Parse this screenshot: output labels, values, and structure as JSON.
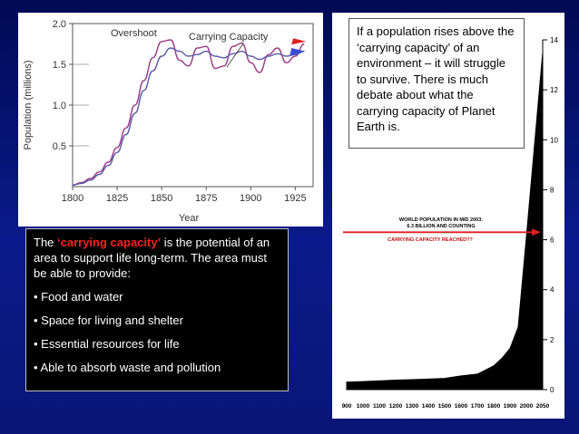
{
  "chart_data": [
    {
      "type": "line",
      "xlabel": "Year",
      "ylabel": "Population (millions)",
      "xlim": [
        1800,
        1935
      ],
      "ylim": [
        0,
        2.0
      ],
      "x_ticks": [
        1800,
        1825,
        1850,
        1875,
        1900,
        1925
      ],
      "y_ticks": [
        0.5,
        1.0,
        1.5,
        2.0
      ],
      "x_tick_labels": [
        "1800",
        "1825",
        "1850",
        "1875",
        "1900",
        "1925"
      ],
      "y_tick_labels": [
        "0.5",
        "1.0",
        "1.5",
        "2.0"
      ],
      "annotations": [
        "Overshoot",
        "Carrying Capacity"
      ],
      "series": [
        {
          "color": "#9b3a86",
          "x": [
            1800,
            1805,
            1810,
            1815,
            1820,
            1825,
            1830,
            1835,
            1840,
            1845,
            1850,
            1855,
            1860,
            1865,
            1870,
            1875,
            1880,
            1885,
            1890,
            1895,
            1900,
            1905,
            1910,
            1915,
            1920,
            1925,
            1930
          ],
          "values": [
            0.02,
            0.05,
            0.1,
            0.18,
            0.3,
            0.48,
            0.72,
            1.0,
            1.3,
            1.58,
            1.78,
            1.8,
            1.55,
            1.48,
            1.7,
            1.72,
            1.45,
            1.48,
            1.72,
            1.76,
            1.52,
            1.4,
            1.62,
            1.7,
            1.52,
            1.6,
            1.75
          ]
        },
        {
          "color": "#5a5aa8",
          "x": [
            1800,
            1805,
            1810,
            1815,
            1820,
            1825,
            1830,
            1835,
            1840,
            1845,
            1850,
            1855,
            1860,
            1865,
            1870,
            1875,
            1880,
            1885,
            1890,
            1895,
            1900,
            1905,
            1910,
            1915,
            1920,
            1925,
            1930
          ],
          "values": [
            0.02,
            0.04,
            0.08,
            0.15,
            0.26,
            0.42,
            0.64,
            0.9,
            1.18,
            1.42,
            1.6,
            1.7,
            1.66,
            1.6,
            1.62,
            1.66,
            1.6,
            1.58,
            1.63,
            1.66,
            1.6,
            1.56,
            1.6,
            1.63,
            1.6,
            1.62,
            1.66
          ]
        }
      ]
    },
    {
      "type": "area",
      "x_tick_labels": [
        "900",
        "1000",
        "1100",
        "1200",
        "1300",
        "1400",
        "1500",
        "1600",
        "1700",
        "1800",
        "1900",
        "2000",
        "2050"
      ],
      "y_ticks": [
        0,
        2,
        4,
        6,
        8,
        10,
        12,
        14
      ],
      "y_tick_labels": [
        "0",
        "2",
        "4",
        "6",
        "8",
        "10",
        "12",
        "14"
      ],
      "ylim": [
        0,
        14
      ],
      "annotation_lines": [
        "WORLD POPULATION IN MID 2003:",
        "6.3 BILLION AND COUNTING",
        "CARRYING CAPACITY REACHED??"
      ],
      "reference_line": 6.3,
      "x": [
        900,
        1000,
        1100,
        1200,
        1300,
        1400,
        1500,
        1600,
        1700,
        1800,
        1850,
        1900,
        1950,
        2000,
        2050
      ],
      "values": [
        0.3,
        0.32,
        0.35,
        0.38,
        0.4,
        0.42,
        0.45,
        0.55,
        0.62,
        0.95,
        1.25,
        1.65,
        2.5,
        6.1,
        13.5
      ]
    }
  ],
  "left_box": {
    "intro_prefix": "The ",
    "highlight": "‘carrying capacity’",
    "intro_suffix": " is the potential of an area to support life long-term. The area must be able to provide:",
    "bullets": [
      "• Food and water",
      "• Space for living and shelter",
      "• Essential resources for life",
      "• Able to absorb waste and pollution"
    ]
  },
  "right_box": {
    "text": "If a population rises above the ‘carrying capacity’ of an environment – it will struggle to survive. There is much debate about what the carrying capacity of Planet Earth is."
  },
  "colors": {
    "slide_background": "#0a1a8a",
    "highlight_red": "#ff2020",
    "overshoot_line": "#9b3a86",
    "capacity_line": "#5a5aa8",
    "reference_red": "#e02020",
    "arrow_red": "#e02020",
    "arrow_blue": "#3b4bd8"
  }
}
